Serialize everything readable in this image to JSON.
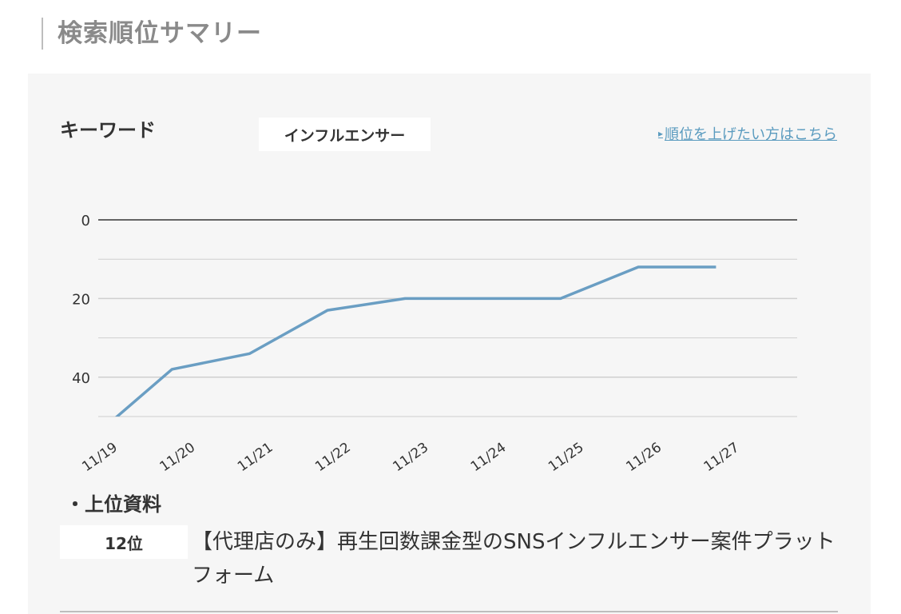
{
  "header": {
    "title": "検索順位サマリー"
  },
  "keyword": {
    "label": "キーワード",
    "value": "インフルエンサー",
    "link_arrow": "▸",
    "link_text": "順位を上げたい方はこちら"
  },
  "chart_data": {
    "type": "line",
    "categories": [
      "11/19",
      "11/20",
      "11/21",
      "11/22",
      "11/23",
      "11/24",
      "11/25",
      "11/26",
      "11/27"
    ],
    "series": [
      {
        "values": [
          55,
          38,
          34,
          23,
          20,
          20,
          20,
          12,
          12
        ]
      }
    ],
    "y_ticks": [
      "0",
      "20",
      "40"
    ],
    "ylim": [
      0,
      50
    ],
    "y_inverted": true,
    "grid": true,
    "colors": {
      "line": "#6a9ec3",
      "grid": "#cfcfcf",
      "baseline": "#333333"
    }
  },
  "top_docs": {
    "heading": "・上位資料",
    "items": [
      {
        "rank": "12位",
        "title": "【代理店のみ】再生回数課金型のSNSインフルエンサー案件プラットフォーム"
      }
    ]
  }
}
